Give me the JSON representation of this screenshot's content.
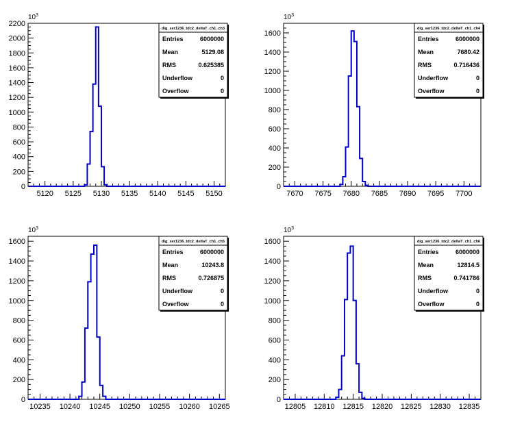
{
  "chart_data": [
    {
      "type": "histogram",
      "title": "",
      "exponent_label": "10",
      "exponent_power": "3",
      "xlim": [
        5117,
        5152
      ],
      "xticks": [
        5120,
        5125,
        5130,
        5135,
        5140,
        5145,
        5150
      ],
      "ylim": [
        0,
        2200
      ],
      "yticks": [
        0,
        200,
        400,
        600,
        800,
        1000,
        1200,
        1400,
        1600,
        1800,
        2000,
        2200
      ],
      "bin_width": 0.5,
      "bins": [
        {
          "x": 5127.0,
          "y": 20
        },
        {
          "x": 5127.5,
          "y": 300
        },
        {
          "x": 5128.0,
          "y": 740
        },
        {
          "x": 5128.5,
          "y": 1380
        },
        {
          "x": 5129.0,
          "y": 2150
        },
        {
          "x": 5129.5,
          "y": 1080
        },
        {
          "x": 5130.0,
          "y": 265
        },
        {
          "x": 5130.5,
          "y": 20
        }
      ],
      "line_color": "#0000cc",
      "stats": {
        "name": "dig_ser1236_tdc2_deltaT_ch1_ch3",
        "rows": [
          {
            "label": "Entries",
            "value": "6000000"
          },
          {
            "label": "Mean",
            "value": "5129.08"
          },
          {
            "label": "RMS",
            "value": "0.625385"
          },
          {
            "label": "Underflow",
            "value": "0"
          },
          {
            "label": "Overflow",
            "value": "0"
          }
        ]
      }
    },
    {
      "type": "histogram",
      "title": "",
      "exponent_label": "10",
      "exponent_power": "3",
      "xlim": [
        7668,
        7703
      ],
      "xticks": [
        7670,
        7675,
        7680,
        7685,
        7690,
        7695,
        7700
      ],
      "ylim": [
        0,
        1700
      ],
      "yticks": [
        0,
        200,
        400,
        600,
        800,
        1000,
        1200,
        1400,
        1600
      ],
      "bin_width": 0.5,
      "bins": [
        {
          "x": 7678.0,
          "y": 20
        },
        {
          "x": 7678.5,
          "y": 100
        },
        {
          "x": 7679.0,
          "y": 410
        },
        {
          "x": 7679.5,
          "y": 1150
        },
        {
          "x": 7680.0,
          "y": 1620
        },
        {
          "x": 7680.5,
          "y": 1510
        },
        {
          "x": 7681.0,
          "y": 830
        },
        {
          "x": 7681.5,
          "y": 290
        },
        {
          "x": 7682.0,
          "y": 50
        },
        {
          "x": 7682.5,
          "y": 10
        }
      ],
      "line_color": "#0000cc",
      "stats": {
        "name": "dig_ser1236_tdc2_deltaT_ch1_ch4",
        "rows": [
          {
            "label": "Entries",
            "value": "6000000"
          },
          {
            "label": "Mean",
            "value": "7680.42"
          },
          {
            "label": "RMS",
            "value": "0.716436"
          },
          {
            "label": "Underflow",
            "value": "0"
          },
          {
            "label": "Overflow",
            "value": "0"
          }
        ]
      }
    },
    {
      "type": "histogram",
      "title": "",
      "exponent_label": "10",
      "exponent_power": "3",
      "xlim": [
        10233,
        10266
      ],
      "xticks": [
        10235,
        10240,
        10245,
        10250,
        10255,
        10260,
        10265
      ],
      "ylim": [
        0,
        1650
      ],
      "yticks": [
        0,
        200,
        400,
        600,
        800,
        1000,
        1200,
        1400,
        1600
      ],
      "bin_width": 0.5,
      "bins": [
        {
          "x": 10241.5,
          "y": 30
        },
        {
          "x": 10242.0,
          "y": 175
        },
        {
          "x": 10242.5,
          "y": 720
        },
        {
          "x": 10243.0,
          "y": 1190
        },
        {
          "x": 10243.5,
          "y": 1470
        },
        {
          "x": 10244.0,
          "y": 1560
        },
        {
          "x": 10244.5,
          "y": 630
        },
        {
          "x": 10245.0,
          "y": 140
        },
        {
          "x": 10245.5,
          "y": 30
        }
      ],
      "line_color": "#0000cc",
      "stats": {
        "name": "dig_ser1236_tdc2_deltaT_ch1_ch5",
        "rows": [
          {
            "label": "Entries",
            "value": "6000000"
          },
          {
            "label": "Mean",
            "value": "10243.8"
          },
          {
            "label": "RMS",
            "value": "0.726875"
          },
          {
            "label": "Underflow",
            "value": "0"
          },
          {
            "label": "Overflow",
            "value": "0"
          }
        ]
      }
    },
    {
      "type": "histogram",
      "title": "",
      "exponent_label": "10",
      "exponent_power": "3",
      "xlim": [
        12803,
        12837
      ],
      "xticks": [
        12805,
        12810,
        12815,
        12820,
        12825,
        12830,
        12835
      ],
      "ylim": [
        0,
        1650
      ],
      "yticks": [
        0,
        200,
        400,
        600,
        800,
        1000,
        1200,
        1400,
        1600
      ],
      "bin_width": 0.5,
      "bins": [
        {
          "x": 12812.0,
          "y": 20
        },
        {
          "x": 12812.5,
          "y": 100
        },
        {
          "x": 12813.0,
          "y": 440
        },
        {
          "x": 12813.5,
          "y": 1010
        },
        {
          "x": 12814.0,
          "y": 1480
        },
        {
          "x": 12814.5,
          "y": 1550
        },
        {
          "x": 12815.0,
          "y": 1000
        },
        {
          "x": 12815.5,
          "y": 360
        },
        {
          "x": 12816.0,
          "y": 70
        },
        {
          "x": 12816.5,
          "y": 10
        }
      ],
      "line_color": "#0000cc",
      "stats": {
        "name": "dig_ser1236_tdc2_deltaT_ch1_ch6",
        "rows": [
          {
            "label": "Entries",
            "value": "6000000"
          },
          {
            "label": "Mean",
            "value": "12814.5"
          },
          {
            "label": "RMS",
            "value": "0.741786"
          },
          {
            "label": "Underflow",
            "value": "0"
          },
          {
            "label": "Overflow",
            "value": "0"
          }
        ]
      }
    }
  ]
}
